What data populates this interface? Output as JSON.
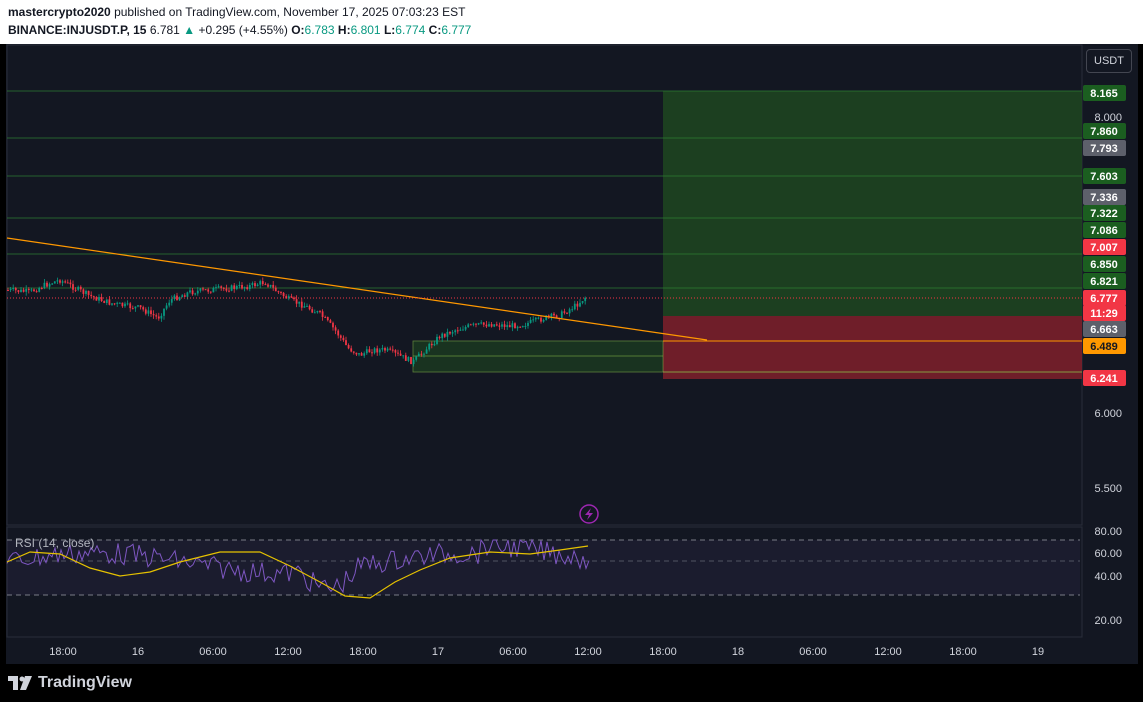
{
  "header": {
    "author": "mastercrypto2020",
    "published_text": "published on TradingView.com, November 17, 2025 07:03:23 EST",
    "symbol": "BINANCE:INJUSDT.P, 15",
    "last": "6.781",
    "change": "+0.295 (+4.55%)",
    "o_label": "O:",
    "o_val": "6.783",
    "h_label": "H:",
    "h_val": "6.801",
    "l_label": "L:",
    "l_val": "6.774",
    "c_label": "C:",
    "c_val": "6.777"
  },
  "currency_button": "USDT",
  "price_axis_ticks": [
    "8.000",
    "6.000",
    "5.500"
  ],
  "price_tags": [
    {
      "label": "8.165",
      "color": "#1b5e20"
    },
    {
      "label": "7.860",
      "color": "#1b5e20"
    },
    {
      "label": "7.793",
      "color": "#5d606b"
    },
    {
      "label": "7.603",
      "color": "#1b5e20"
    },
    {
      "label": "7.336",
      "color": "#5d606b"
    },
    {
      "label": "7.322",
      "color": "#1b5e20"
    },
    {
      "label": "7.086",
      "color": "#1b5e20"
    },
    {
      "label": "7.007",
      "color": "#f23645"
    },
    {
      "label": "6.850",
      "color": "#1b5e20"
    },
    {
      "label": "6.821",
      "color": "#1b5e20"
    },
    {
      "label": "6.777",
      "color": "#f23645"
    },
    {
      "label": "11:29",
      "color": "#f23645"
    },
    {
      "label": "6.663",
      "color": "#5d606b"
    },
    {
      "label": "6.489",
      "color": "#ff9800"
    },
    {
      "label": "6.241",
      "color": "#f23645"
    }
  ],
  "rsi": {
    "label": "RSI (14, close)",
    "ticks": [
      "80.00",
      "60.00",
      "40.00",
      "20.00"
    ]
  },
  "time_axis": [
    "18:00",
    "16",
    "06:00",
    "12:00",
    "18:00",
    "17",
    "06:00",
    "12:00",
    "18:00",
    "18",
    "06:00",
    "12:00",
    "18:00",
    "19"
  ],
  "footer": {
    "brand": "TradingView"
  },
  "colors": {
    "up": "#089981",
    "down": "#f23645",
    "trendline": "#ff9800",
    "rsi_line": "#7e57c2",
    "rsi_ma": "#e6c200"
  }
}
